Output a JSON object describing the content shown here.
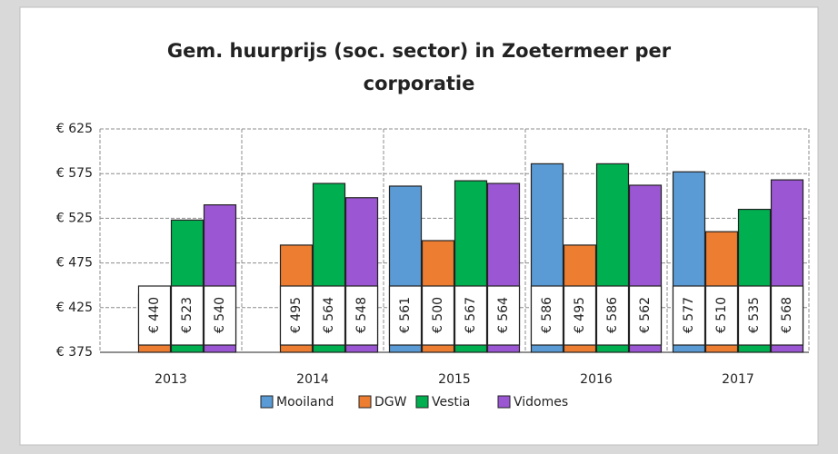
{
  "chart_data": {
    "type": "bar",
    "title": "Gem. huurprijs (soc. sector) in Zoetermeer per corporatie",
    "categories": [
      "2013",
      "2014",
      "2015",
      "2016",
      "2017"
    ],
    "series": [
      {
        "name": "Mooiland",
        "color": "#5b9bd5",
        "values": [
          null,
          null,
          561,
          586,
          577
        ],
        "value_labels": [
          null,
          null,
          "€ 561",
          "€ 586",
          "€ 577"
        ]
      },
      {
        "name": "DGW",
        "color": "#ed7d31",
        "values": [
          440,
          495,
          500,
          495,
          510
        ],
        "value_labels": [
          "€ 440",
          "€ 495",
          "€ 500",
          "€ 495",
          "€ 510"
        ]
      },
      {
        "name": "Vestia",
        "color": "#00b050",
        "values": [
          523,
          564,
          567,
          586,
          535
        ],
        "value_labels": [
          "€ 523",
          "€ 564",
          "€ 567",
          "€ 586",
          "€ 535"
        ]
      },
      {
        "name": "Vidomes",
        "color": "#9b57d3",
        "values": [
          540,
          548,
          564,
          562,
          568
        ],
        "value_labels": [
          "€ 540",
          "€ 548",
          "€ 564",
          "€ 562",
          "€ 568"
        ]
      }
    ],
    "ylim": [
      375,
      625
    ],
    "yticks": [
      {
        "value": 375,
        "label": "€ 375"
      },
      {
        "value": 425,
        "label": "€ 425"
      },
      {
        "value": 475,
        "label": "€ 475"
      },
      {
        "value": 525,
        "label": "€ 525"
      },
      {
        "value": 575,
        "label": "€ 575"
      },
      {
        "value": 625,
        "label": "€ 625"
      }
    ],
    "grid": true,
    "legend": "bottom"
  }
}
